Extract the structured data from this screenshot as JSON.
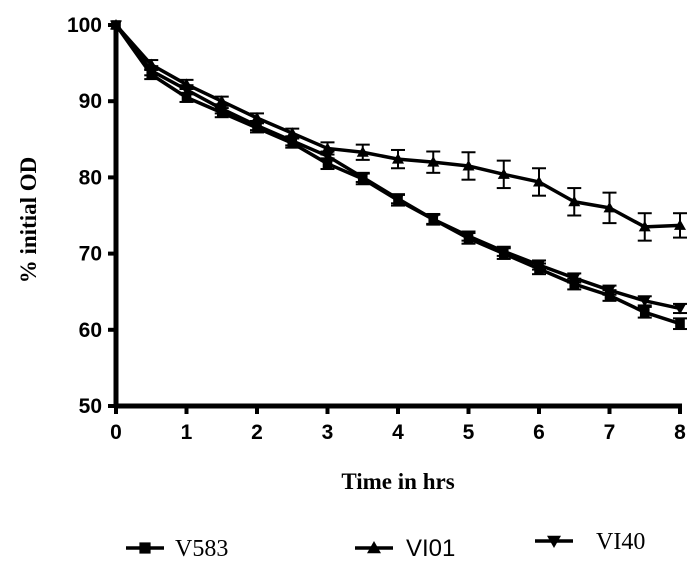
{
  "chart_data": {
    "type": "line",
    "title": "",
    "xlabel": "Time in hrs",
    "ylabel": "% initial OD",
    "xlim": [
      0,
      8
    ],
    "ylim": [
      50,
      100
    ],
    "x_ticks": [
      "0",
      "1",
      "2",
      "3",
      "4",
      "5",
      "6",
      "7",
      "8"
    ],
    "y_ticks": [
      "50",
      "60",
      "70",
      "80",
      "90",
      "100"
    ],
    "x": [
      0,
      0.5,
      1,
      1.5,
      2,
      2.5,
      3,
      3.5,
      4,
      4.5,
      5,
      5.5,
      6,
      6.5,
      7,
      7.5,
      8
    ],
    "grid": false,
    "legend": "bottom",
    "series": [
      {
        "name": "V583",
        "marker": "square",
        "values": [
          100,
          93.5,
          90.5,
          88.5,
          86.5,
          84.5,
          81.8,
          79.8,
          77,
          74.5,
          72,
          70,
          68,
          66,
          64.5,
          62.3,
          60.8
        ],
        "errors": [
          0,
          0.6,
          0.6,
          0.6,
          0.6,
          0.6,
          0.7,
          0.7,
          0.7,
          0.7,
          0.7,
          0.7,
          0.7,
          0.7,
          0.7,
          0.7,
          0.7
        ]
      },
      {
        "name": "VI01",
        "marker": "triangle-up",
        "values": [
          100,
          94.8,
          92.2,
          90,
          87.8,
          85.8,
          83.8,
          83.3,
          82.4,
          82,
          81.5,
          80.4,
          79.4,
          76.8,
          76,
          73.5,
          73.7
        ],
        "errors": [
          0,
          0.6,
          0.6,
          0.6,
          0.6,
          0.6,
          0.8,
          1.0,
          1.2,
          1.4,
          1.8,
          1.8,
          1.8,
          1.8,
          2.0,
          1.8,
          1.6
        ]
      },
      {
        "name": "VI40",
        "marker": "triangle-down",
        "values": [
          100,
          94,
          91.5,
          89,
          86.8,
          84.8,
          82.8,
          80,
          77.2,
          74.5,
          72.3,
          70.3,
          68.5,
          66.8,
          65.2,
          63.8,
          62.8
        ],
        "errors": [
          0,
          0.6,
          0.6,
          0.6,
          0.6,
          0.6,
          0.6,
          0.6,
          0.6,
          0.6,
          0.6,
          0.6,
          0.6,
          0.6,
          0.6,
          0.6,
          0.6
        ]
      }
    ]
  }
}
